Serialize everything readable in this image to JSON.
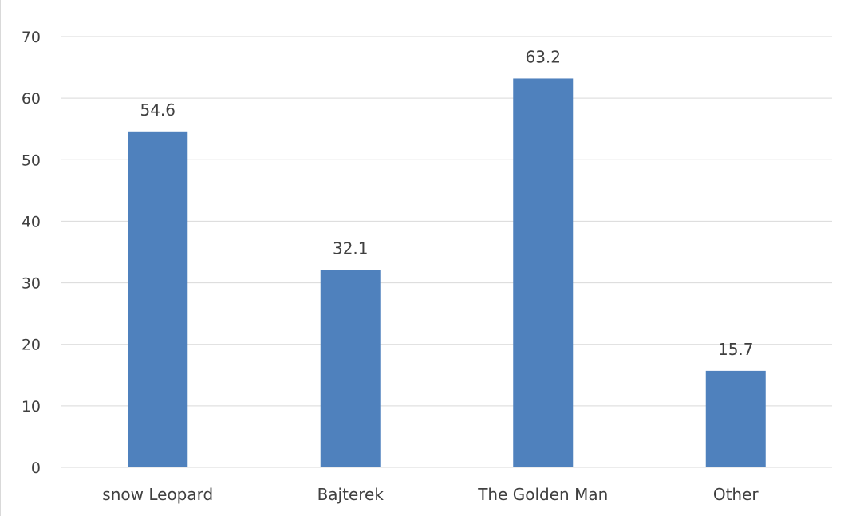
{
  "chart_data": {
    "type": "bar",
    "categories": [
      "snow Leopard",
      "Bajterek",
      "The Golden Man",
      "Other"
    ],
    "values": [
      54.6,
      32.1,
      63.2,
      15.7
    ],
    "data_labels": [
      "54.6",
      "32.1",
      "63.2",
      "15.7"
    ],
    "ylim": [
      0,
      70
    ],
    "yticks": [
      "0",
      "10",
      "20",
      "30",
      "40",
      "50",
      "60",
      "70"
    ],
    "grid": true,
    "legend": "none",
    "bar_color": "#4f81bd",
    "title": "",
    "xlabel": "",
    "ylabel": ""
  }
}
